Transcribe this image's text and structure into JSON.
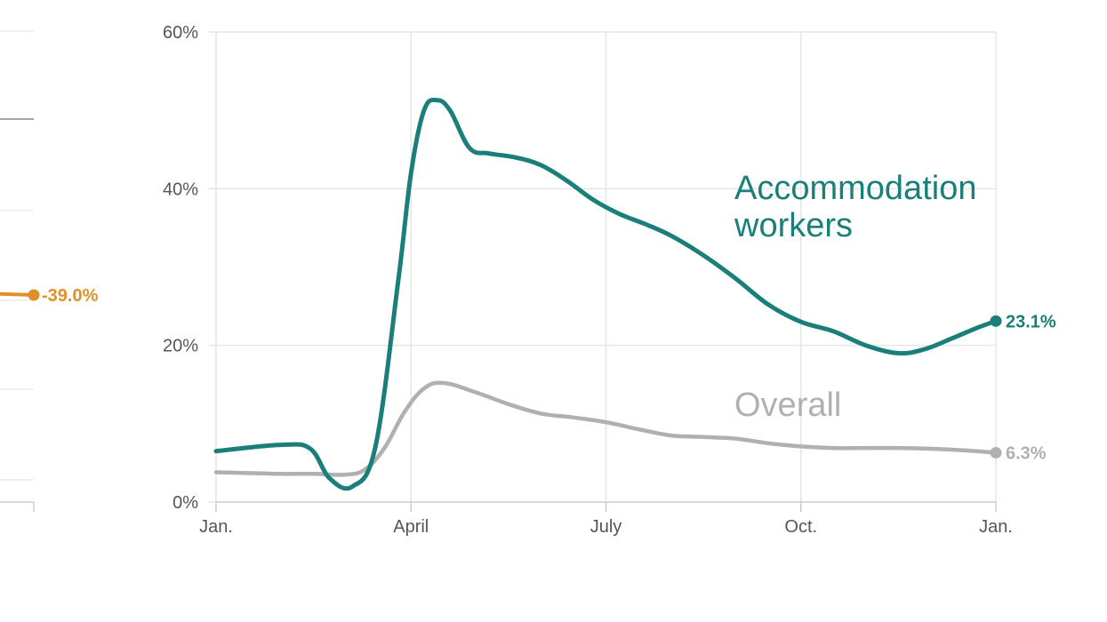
{
  "chart_data": [
    {
      "type": "line",
      "partial": true,
      "series": [
        {
          "x": [
            0.78,
            1.0
          ],
          "values": [
            -38.6,
            -39.0
          ],
          "end_label": "-39.0%",
          "color": "#e0902a"
        }
      ]
    },
    {
      "type": "line",
      "x_tick_labels": [
        "Jan.",
        "April",
        "July",
        "Oct.",
        "Jan."
      ],
      "x_tick_positions": [
        0,
        3,
        6,
        9,
        12
      ],
      "xlim": [
        0,
        12
      ],
      "y_tick_labels": [
        "0%",
        "20%",
        "40%",
        "60%"
      ],
      "y_ticks": [
        0,
        20,
        40,
        60
      ],
      "ylim": [
        0,
        60
      ],
      "grid": true,
      "series": [
        {
          "name": "Accommodation workers",
          "color": "#1a7f7a",
          "x": [
            0,
            1,
            1.45,
            1.75,
            2.1,
            2.45,
            2.8,
            3.0,
            3.2,
            3.4,
            3.6,
            3.9,
            4.2,
            4.6,
            5.0,
            5.4,
            5.8,
            6.2,
            6.6,
            7.0,
            7.5,
            8.0,
            8.5,
            9.0,
            9.5,
            10.0,
            10.5,
            10.9,
            11.3,
            11.7,
            12.0
          ],
          "values": [
            6.5,
            7.3,
            6.8,
            3.0,
            2.0,
            7.0,
            28.0,
            42.0,
            50.0,
            51.3,
            50.0,
            45.2,
            44.5,
            44.0,
            43.0,
            41.0,
            38.6,
            36.8,
            35.5,
            34.0,
            31.5,
            28.5,
            25.2,
            23.0,
            21.8,
            20.0,
            19.0,
            19.5,
            20.8,
            22.2,
            23.1
          ],
          "end_label": "23.1%",
          "label_lines": [
            "Accommodation",
            "workers"
          ]
        },
        {
          "name": "Overall",
          "color": "#b0b0b0",
          "x": [
            0,
            0.5,
            1.0,
            1.5,
            2.0,
            2.3,
            2.6,
            2.9,
            3.2,
            3.5,
            4.0,
            4.5,
            5.0,
            5.5,
            6.0,
            6.5,
            7.0,
            7.5,
            8.0,
            8.5,
            9.0,
            9.5,
            10.0,
            10.5,
            11.0,
            11.5,
            12.0
          ],
          "values": [
            3.8,
            3.7,
            3.6,
            3.6,
            3.5,
            4.2,
            7.0,
            11.5,
            14.5,
            15.2,
            14.0,
            12.5,
            11.3,
            10.8,
            10.2,
            9.3,
            8.5,
            8.3,
            8.1,
            7.5,
            7.1,
            6.9,
            6.9,
            6.9,
            6.8,
            6.6,
            6.3
          ],
          "end_label": "6.3%",
          "label_lines": [
            "Overall"
          ]
        }
      ]
    }
  ]
}
